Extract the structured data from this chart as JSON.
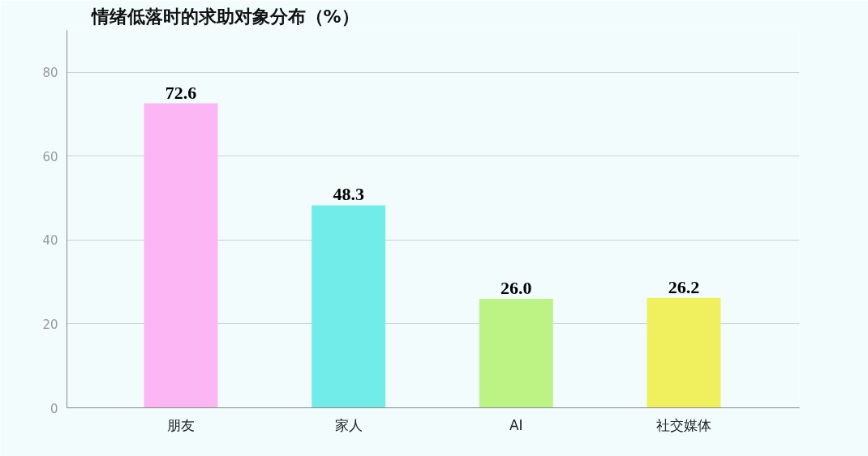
{
  "chart_data": {
    "type": "bar",
    "title": "情绪低落时的求助对象分布（%）",
    "categories": [
      "朋友",
      "家人",
      "AI",
      "社交媒体"
    ],
    "values": [
      72.6,
      48.3,
      26.0,
      26.2
    ],
    "colors": [
      "#fbb6f3",
      "#72ece9",
      "#bdf385",
      "#f0f05e"
    ],
    "ylim": [
      0,
      90
    ],
    "yticks": [
      0,
      20,
      40,
      60,
      80
    ],
    "grid": "y",
    "value_labels": [
      "72.6",
      "48.3",
      "26.0",
      "26.2"
    ]
  }
}
